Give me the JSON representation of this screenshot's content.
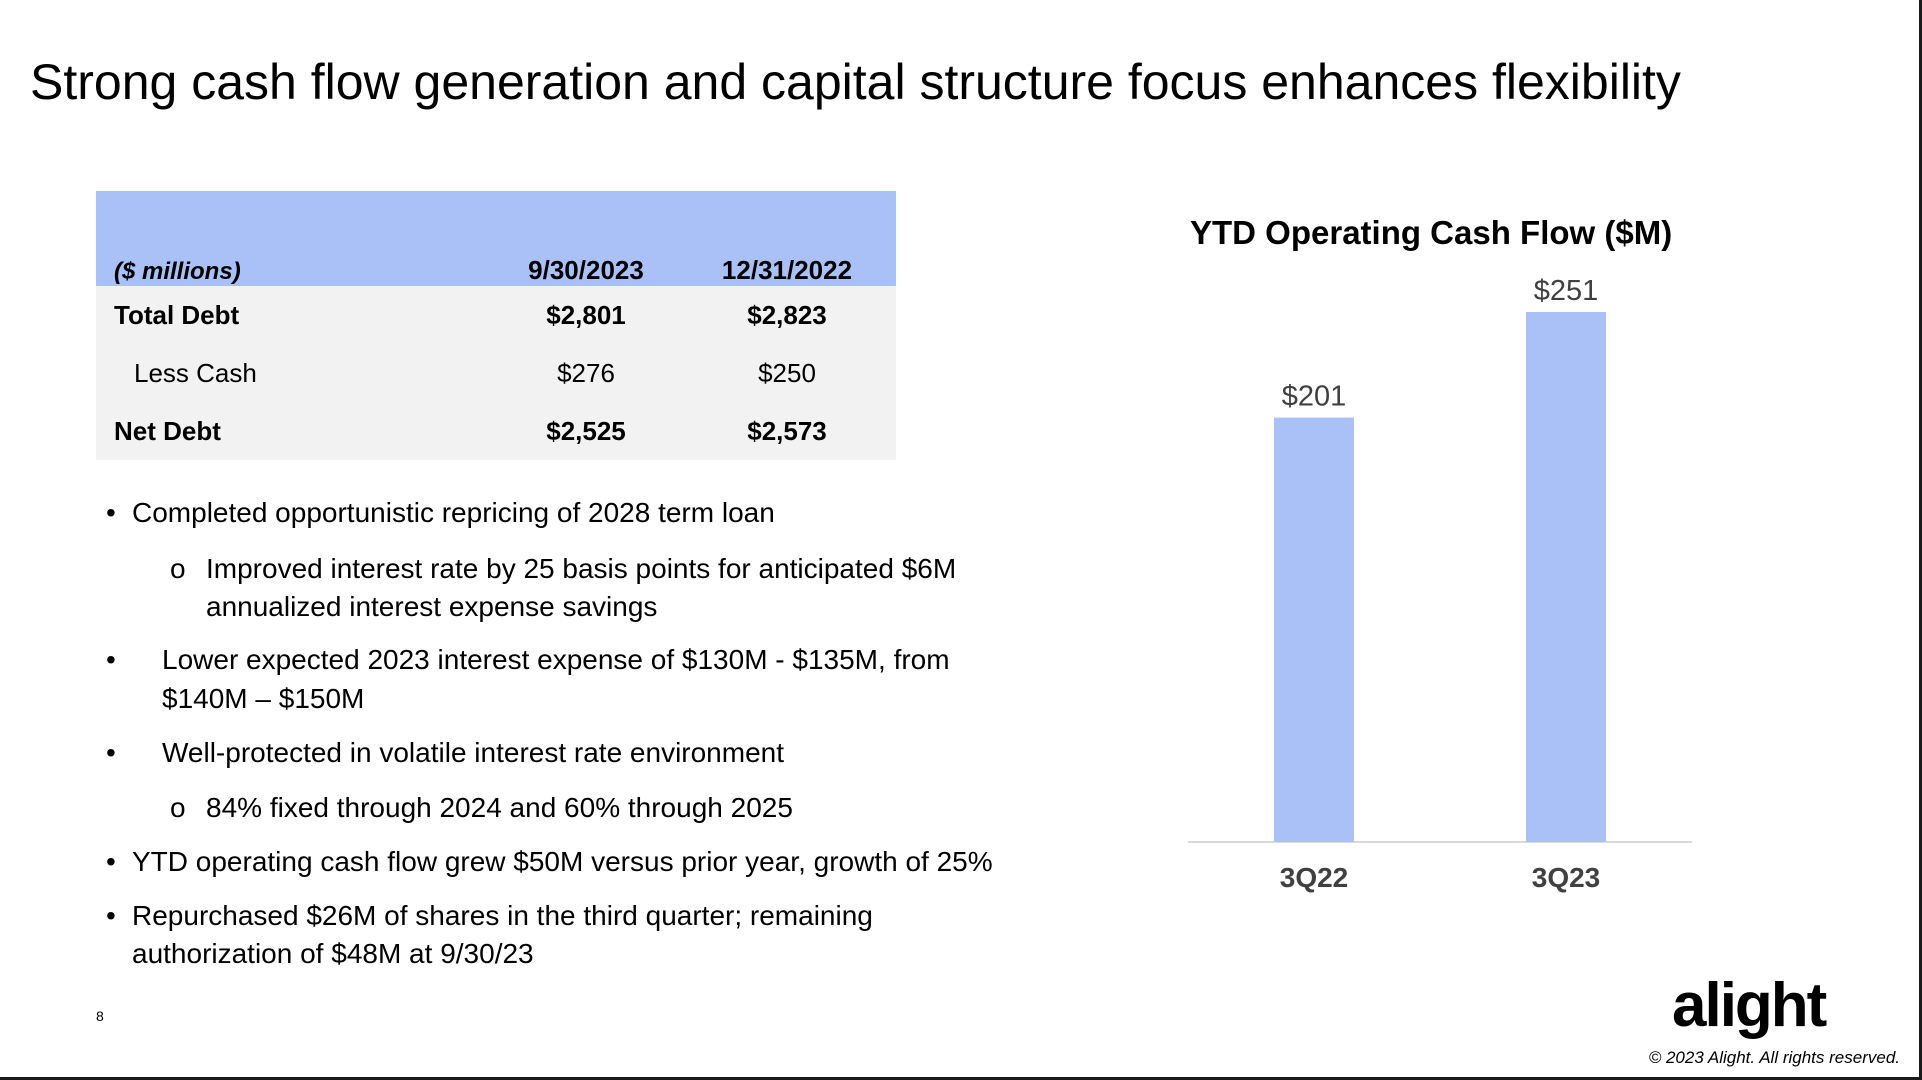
{
  "title": "Strong cash flow generation and capital structure focus enhances flexibility",
  "table": {
    "header": [
      "($ millions)",
      "9/30/2023",
      "12/31/2022"
    ],
    "rows": [
      {
        "label": "Total Debt",
        "values": [
          "$2,801",
          "$2,823"
        ],
        "bold": true,
        "indent": false
      },
      {
        "label": "Less Cash",
        "values": [
          "$276",
          "$250"
        ],
        "bold": false,
        "indent": true
      },
      {
        "label": "Net Debt",
        "values": [
          "$2,525",
          "$2,573"
        ],
        "bold": true,
        "indent": false
      }
    ]
  },
  "bullets": [
    {
      "level": 1,
      "marker": "•",
      "lines": [
        "Completed opportunistic repricing of 2028 term loan"
      ]
    },
    {
      "level": 2,
      "marker": "o",
      "lines": [
        "Improved interest rate by 25 basis points for anticipated $6M",
        "annualized interest expense savings"
      ]
    },
    {
      "level": 1,
      "marker": "•",
      "lines": [
        "Lower expected 2023 interest expense of $130M - $135M, from",
        "$140M – $150M"
      ]
    },
    {
      "level": 1,
      "marker": "•",
      "lines": [
        "Well-protected in volatile interest rate environment"
      ]
    },
    {
      "level": 2,
      "marker": "o",
      "lines": [
        "84% fixed through 2024 and 60% through 2025"
      ]
    },
    {
      "level": 1,
      "marker": "•",
      "lines": [
        "YTD operating cash flow grew $50M versus prior year, growth of 25%"
      ]
    },
    {
      "level": 1,
      "marker": "•",
      "lines": [
        "Repurchased $26M of shares in the third quarter; remaining",
        "authorization of $48M at 9/30/23"
      ]
    }
  ],
  "chart_data": {
    "type": "bar",
    "title": "YTD Operating Cash Flow ($M)",
    "categories": [
      "3Q22",
      "3Q23"
    ],
    "values": [
      201,
      251
    ],
    "data_labels": [
      "$201",
      "$251"
    ],
    "ylim": [
      0,
      251
    ],
    "grid": false,
    "bar_color": "#a9c1f7",
    "label_color": "#404040",
    "axis_color": "#d9d9d9"
  },
  "footer": {
    "page_number": "8",
    "logo_text": "alight",
    "copyright": "© 2023 Alight. All rights reserved."
  }
}
